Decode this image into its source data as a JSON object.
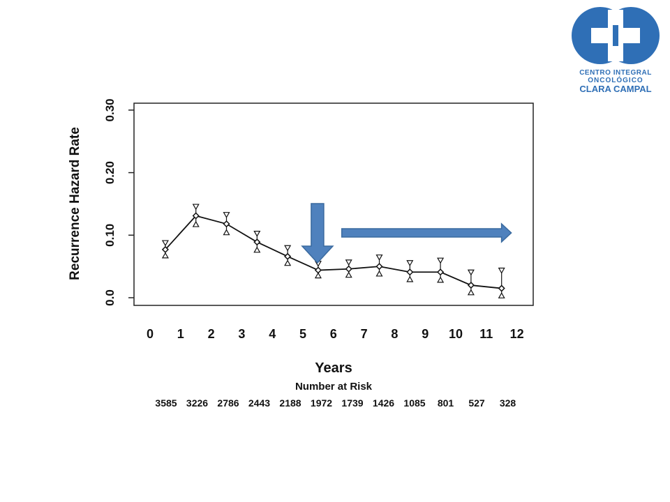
{
  "logo": {
    "line1": "CENTRO INTEGRAL",
    "line2": "ONCOLÓGICO",
    "line3": "CLARA CAMPAL",
    "color": "#2f6fb6"
  },
  "chart_data": {
    "type": "line",
    "title": "",
    "xlabel": "Years",
    "ylabel": "Recurrence Hazard Rate",
    "xlim": [
      0,
      12
    ],
    "ylim": [
      0,
      0.3
    ],
    "x_ticks": [
      "0",
      "1",
      "2",
      "3",
      "4",
      "5",
      "6",
      "7",
      "8",
      "9",
      "10",
      "11",
      "12"
    ],
    "y_ticks": [
      {
        "value": 0.0,
        "label": "0.0"
      },
      {
        "value": 0.1,
        "label": "0.10"
      },
      {
        "value": 0.2,
        "label": "0.20"
      },
      {
        "value": 0.3,
        "label": "0.30"
      }
    ],
    "grid": false,
    "series": [
      {
        "x": [
          0.5,
          1.5,
          2.5,
          3.5,
          4.5,
          5.5,
          6.5,
          7.5,
          8.5,
          9.5,
          10.5,
          11.5
        ],
        "y": [
          0.077,
          0.131,
          0.118,
          0.089,
          0.066,
          0.044,
          0.046,
          0.05,
          0.041,
          0.041,
          0.02,
          0.015
        ],
        "lower": [
          0.067,
          0.117,
          0.104,
          0.076,
          0.055,
          0.035,
          0.036,
          0.038,
          0.029,
          0.028,
          0.008,
          0.003
        ],
        "upper": [
          0.088,
          0.146,
          0.133,
          0.103,
          0.08,
          0.055,
          0.057,
          0.065,
          0.056,
          0.06,
          0.041,
          0.044
        ]
      }
    ],
    "risk_table": {
      "title": "Number at Risk",
      "values": [
        "3585",
        "3226",
        "2786",
        "2443",
        "2188",
        "1972",
        "1739",
        "1426",
        "1085",
        "801",
        "527",
        "328"
      ]
    },
    "annotations": [
      {
        "type": "arrow",
        "direction": "down",
        "at_x": 5.5,
        "color": "#4f81bd"
      },
      {
        "type": "arrow",
        "direction": "right",
        "from_x": 6.5,
        "to_x": 12,
        "color": "#4f81bd"
      }
    ]
  }
}
